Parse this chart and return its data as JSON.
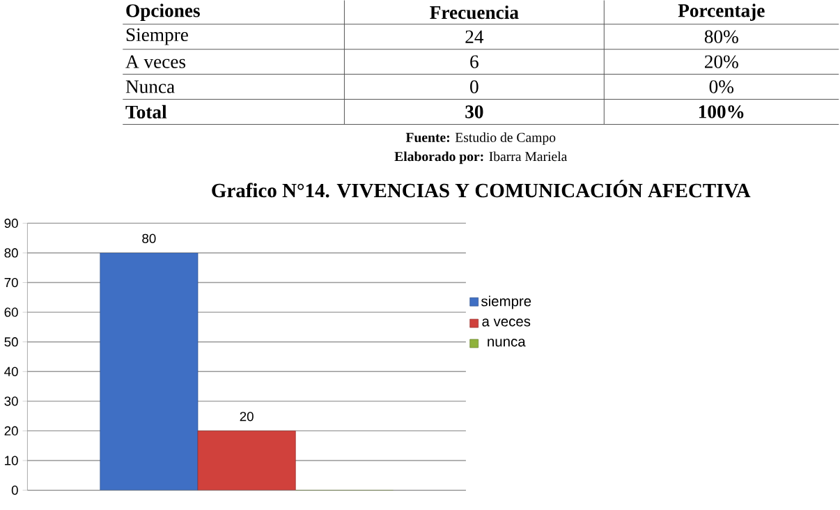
{
  "chart_data": {
    "type": "bar",
    "title": "Grafico N°14. VIVENCIAS Y COMUNICACIÓN AFECTIVA",
    "categories": [
      null
    ],
    "series": [
      {
        "name": "siempre",
        "color": "#3f6fc4",
        "values": [
          80
        ],
        "value_labels": [
          "80"
        ]
      },
      {
        "name": "a veces",
        "color": "#d0413c",
        "values": [
          20
        ],
        "value_labels": [
          "20"
        ]
      },
      {
        "name": "nunca",
        "color": "#8fb23c",
        "values": [
          0
        ],
        "value_labels": [
          null
        ]
      }
    ],
    "ylim": [
      0,
      90
    ],
    "yticks": [
      0,
      10,
      20,
      30,
      40,
      50,
      60,
      70,
      80,
      90
    ],
    "grid": "y",
    "legend": "right",
    "annotations": [
      "Opciones",
      "Frecuencia",
      "Porcentaje",
      "Siempre",
      "24",
      "80%",
      "A veces",
      "6",
      "20%",
      "Nunca",
      "0",
      "0%",
      "Total",
      "30",
      "100%",
      "**Fuente:** Estudio de Campo",
      "**Elaborado por:** Ibarra Mariela"
    ]
  }
}
